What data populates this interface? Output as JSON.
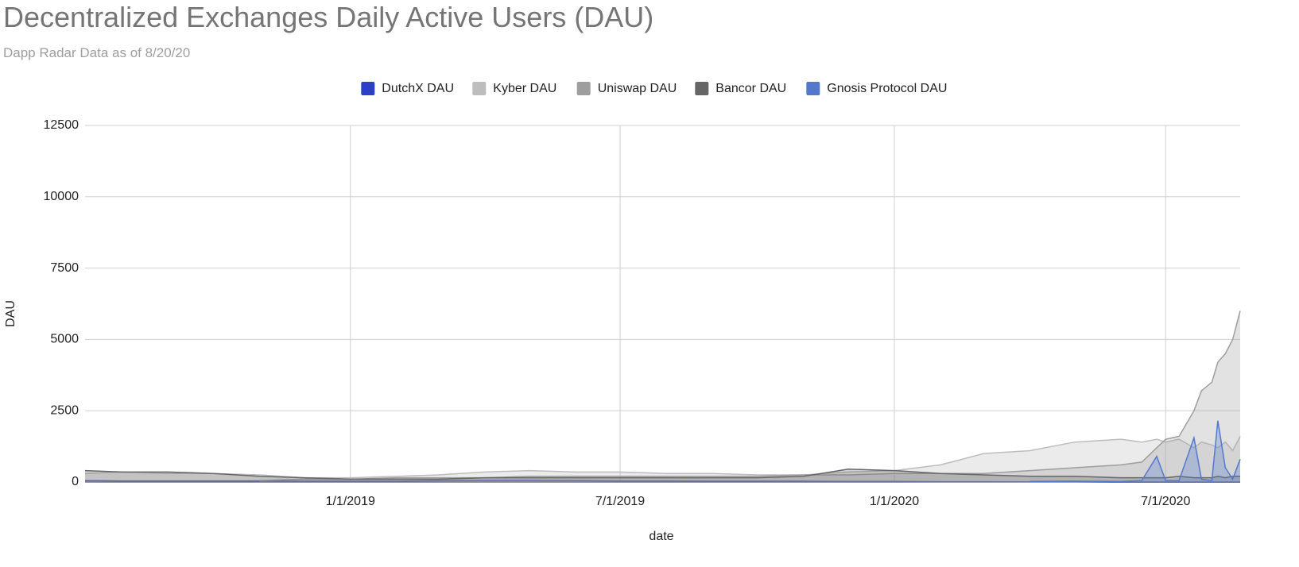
{
  "chart_data": {
    "type": "area",
    "title": "Decentralized Exchanges Daily Active Users (DAU)",
    "subtitle": "Dapp Radar Data as of 8/20/20",
    "x_label": "date",
    "y_label": "DAU",
    "x": [
      "7/7/2018",
      "8/1/2018",
      "9/1/2018",
      "10/1/2018",
      "11/1/2018",
      "12/1/2018",
      "1/1/2019",
      "2/1/2019",
      "3/1/2019",
      "4/1/2019",
      "5/1/2019",
      "6/1/2019",
      "7/1/2019",
      "8/1/2019",
      "9/1/2019",
      "10/1/2019",
      "11/1/2019",
      "12/1/2019",
      "1/1/2020",
      "2/1/2020",
      "3/1/2020",
      "4/1/2020",
      "5/1/2020",
      "6/1/2020",
      "6/15/2020",
      "6/25/2020",
      "7/1/2020",
      "7/10/2020",
      "7/20/2020",
      "7/25/2020",
      "8/1/2020",
      "8/5/2020",
      "8/10/2020",
      "8/15/2020",
      "8/20/2020"
    ],
    "xlim": [
      "7/7/2018",
      "8/20/2020"
    ],
    "xticks": [
      "1/1/2019",
      "7/1/2019",
      "1/1/2020",
      "7/1/2020"
    ],
    "ylim": [
      0,
      12500
    ],
    "yticks": [
      0,
      2500,
      5000,
      7500,
      10000,
      12500
    ],
    "grid": true,
    "legend": "top",
    "series": [
      {
        "name": "DutchX DAU",
        "color": "#2b3fc7",
        "values": [
          50,
          40,
          40,
          40,
          40,
          30,
          30,
          30,
          50,
          60,
          60,
          50,
          40,
          40,
          30,
          30,
          30,
          20,
          20,
          10,
          10,
          5,
          5,
          0,
          0,
          0,
          0,
          0,
          0,
          0,
          0,
          0,
          0,
          0,
          0
        ]
      },
      {
        "name": "Kyber DAU",
        "color": "#bdbdbd",
        "values": [
          300,
          350,
          300,
          300,
          250,
          150,
          150,
          200,
          250,
          350,
          400,
          350,
          350,
          300,
          300,
          250,
          250,
          350,
          400,
          600,
          1000,
          1100,
          1400,
          1500,
          1400,
          1500,
          1400,
          1500,
          1200,
          1400,
          1300,
          1200,
          1400,
          1100,
          1600
        ]
      },
      {
        "name": "Uniswap DAU",
        "color": "#9e9e9e",
        "values": [
          null,
          null,
          null,
          null,
          50,
          100,
          100,
          150,
          150,
          150,
          200,
          200,
          200,
          200,
          200,
          200,
          250,
          250,
          300,
          300,
          300,
          400,
          500,
          600,
          700,
          1200,
          1500,
          1600,
          2500,
          3200,
          3500,
          4200,
          4500,
          5000,
          6000
        ]
      },
      {
        "name": "Bancor DAU",
        "color": "#666666",
        "values": [
          400,
          350,
          350,
          300,
          200,
          150,
          100,
          100,
          100,
          150,
          150,
          150,
          150,
          150,
          150,
          150,
          200,
          450,
          400,
          300,
          250,
          200,
          200,
          150,
          150,
          150,
          150,
          200,
          150,
          150,
          150,
          200,
          150,
          200,
          200
        ]
      },
      {
        "name": "Gnosis Protocol DAU",
        "color": "#5479cc",
        "values": [
          null,
          null,
          null,
          null,
          null,
          null,
          null,
          null,
          null,
          null,
          null,
          null,
          null,
          null,
          null,
          null,
          null,
          null,
          null,
          null,
          null,
          20,
          30,
          20,
          50,
          900,
          50,
          50,
          1550,
          100,
          50,
          2150,
          500,
          100,
          800
        ]
      }
    ]
  }
}
